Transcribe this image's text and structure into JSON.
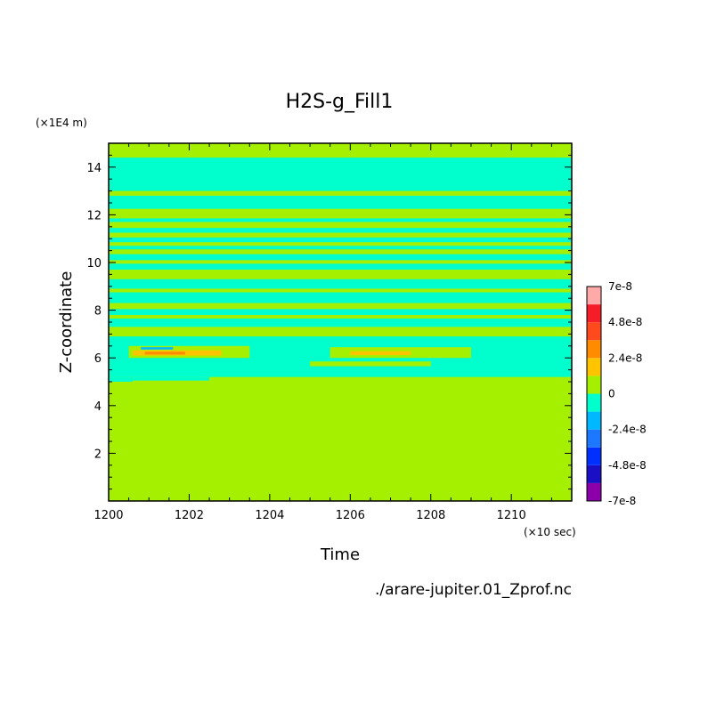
{
  "chart_data": {
    "type": "heatmap",
    "title": "H2S-g_Fill1",
    "xlabel": "Time",
    "ylabel": "Z-coordinate",
    "x_unit": "(×10 sec)",
    "y_unit": "(×1E4 m)",
    "source": "./arare-jupiter.01_Zprof.nc",
    "xlim": [
      1200,
      1211.5
    ],
    "ylim": [
      0,
      15
    ],
    "x_ticks": [
      1200,
      1202,
      1204,
      1206,
      1208,
      1210
    ],
    "y_ticks": [
      2,
      4,
      6,
      8,
      10,
      12,
      14
    ],
    "colorbar": {
      "labels": [
        "7e-8",
        "4.8e-8",
        "2.4e-8",
        "0",
        "-2.4e-8",
        "-4.8e-8",
        "-7e-8"
      ],
      "levels": [
        {
          "min": -7e-08,
          "max": -6e-08,
          "color": "#8b00a8"
        },
        {
          "min": -6e-08,
          "max": -4.8e-08,
          "color": "#1a0fc4"
        },
        {
          "min": -4.8e-08,
          "max": -3.6e-08,
          "color": "#0030ff"
        },
        {
          "min": -3.6e-08,
          "max": -2.4e-08,
          "color": "#1e78ff"
        },
        {
          "min": -2.4e-08,
          "max": -1.2e-08,
          "color": "#00b8ff"
        },
        {
          "min": -1.2e-08,
          "max": 0,
          "color": "#00ffcc"
        },
        {
          "min": 0,
          "max": 1.2e-08,
          "color": "#a4f000"
        },
        {
          "min": 1.2e-08,
          "max": 2.4e-08,
          "color": "#ffc400"
        },
        {
          "min": 2.4e-08,
          "max": 3.6e-08,
          "color": "#ff8c00"
        },
        {
          "min": 3.6e-08,
          "max": 4.8e-08,
          "color": "#ff4a1e"
        },
        {
          "min": 4.8e-08,
          "max": 6e-08,
          "color": "#f51e28"
        },
        {
          "min": 6e-08,
          "max": 7e-08,
          "color": "#ffaaa8"
        }
      ]
    },
    "regions": [
      {
        "level": 6,
        "y0": 0,
        "y1": 15
      },
      {
        "level": 5,
        "y0": 14.4,
        "y1": 13.0
      },
      {
        "level": 5,
        "y0": 12.8,
        "y1": 12.25
      },
      {
        "level": 5,
        "y0": 11.85,
        "y1": 11.7
      },
      {
        "level": 5,
        "y0": 11.45,
        "y1": 11.25
      },
      {
        "level": 5,
        "y0": 11.05,
        "y1": 10.85
      },
      {
        "level": 5,
        "y0": 10.7,
        "y1": 10.55
      },
      {
        "level": 5,
        "y0": 10.35,
        "y1": 10.1
      },
      {
        "level": 5,
        "y0": 9.95,
        "y1": 9.7
      },
      {
        "level": 5,
        "y0": 9.3,
        "y1": 8.9
      },
      {
        "level": 5,
        "y0": 8.75,
        "y1": 8.3
      },
      {
        "level": 5,
        "y0": 8.05,
        "y1": 7.8
      },
      {
        "level": 5,
        "y0": 7.65,
        "y1": 7.3
      },
      {
        "level": 5,
        "y0": 6.9,
        "y1": 5.2
      },
      {
        "level": 5,
        "y0": 5.2,
        "y1": 5.0,
        "x0": 1200,
        "x1": 1200.6
      },
      {
        "level": 5,
        "y0": 5.2,
        "y1": 5.05,
        "x0": 1200.6,
        "x1": 1202.5
      },
      {
        "level": 6,
        "y0": 6.5,
        "y1": 6.0,
        "x0": 1200.5,
        "x1": 1203.5
      },
      {
        "level": 6,
        "y0": 6.45,
        "y1": 6.0,
        "x0": 1205.5,
        "x1": 1209.0
      },
      {
        "level": 6,
        "y0": 5.85,
        "y1": 5.65,
        "x0": 1205.0,
        "x1": 1208.0
      },
      {
        "level": 7,
        "y0": 6.32,
        "y1": 6.1,
        "x0": 1200.6,
        "x1": 1202.8
      },
      {
        "level": 7,
        "y0": 6.28,
        "y1": 6.12,
        "x0": 1206.0,
        "x1": 1207.5
      },
      {
        "level": 8,
        "y0": 6.26,
        "y1": 6.14,
        "x0": 1200.9,
        "x1": 1201.9
      },
      {
        "level": 4,
        "y0": 6.45,
        "y1": 6.35,
        "x0": 1200.8,
        "x1": 1201.6
      }
    ]
  }
}
